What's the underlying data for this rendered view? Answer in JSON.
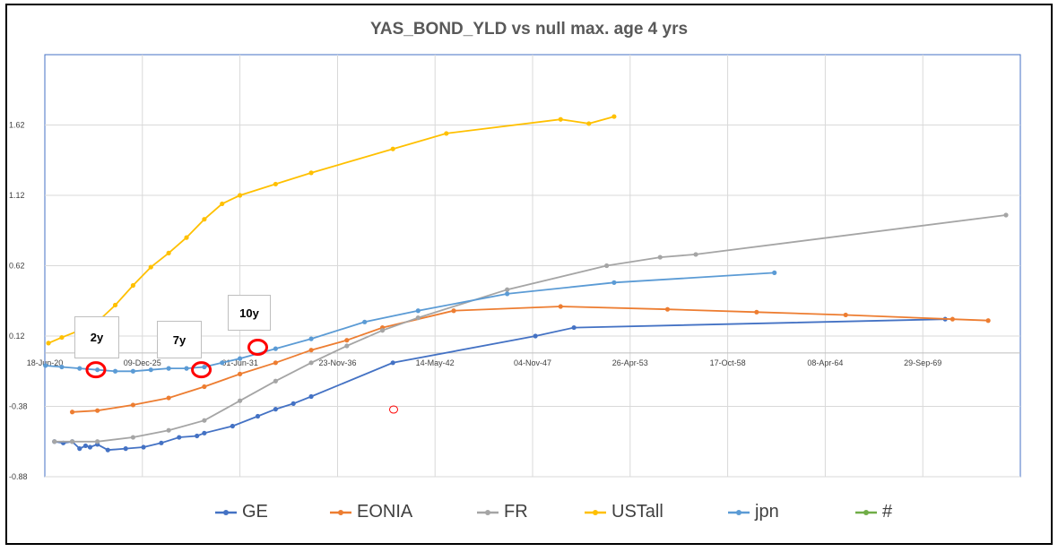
{
  "chart_data": {
    "type": "line",
    "title": "YAS_BOND_YLD vs null max. age 4 yrs",
    "xlabel": "",
    "ylabel": "",
    "x_ticks": [
      "18-Jun-20",
      "09-Dec-25",
      "01-Jun-31",
      "23-Nov-36",
      "14-May-42",
      "04-Nov-47",
      "26-Apr-53",
      "17-Oct-58",
      "08-Apr-64",
      "29-Sep-69"
    ],
    "y_ticks": [
      "1.62",
      "1.12",
      "0.62",
      "0.12",
      "-0.38",
      "-0.88"
    ],
    "xlim": [
      "2020-06-18",
      "2075-03-22"
    ],
    "ylim": [
      -0.88,
      2.12
    ],
    "x_axis_crosses_y": 0.0,
    "grid": true,
    "legend_position": "bottom",
    "series": [
      {
        "name": "GE",
        "color": "#4472C4",
        "points": [
          [
            "2021-01-01",
            -0.63
          ],
          [
            "2021-07-01",
            -0.64
          ],
          [
            "2022-01-01",
            -0.63
          ],
          [
            "2022-06-01",
            -0.68
          ],
          [
            "2022-10-01",
            -0.66
          ],
          [
            "2023-01-01",
            -0.67
          ],
          [
            "2023-06-01",
            -0.65
          ],
          [
            "2024-01-01",
            -0.69
          ],
          [
            "2025-01-01",
            -0.68
          ],
          [
            "2026-01-01",
            -0.67
          ],
          [
            "2027-01-01",
            -0.64
          ],
          [
            "2028-01-01",
            -0.6
          ],
          [
            "2029-01-01",
            -0.59
          ],
          [
            "2029-06-01",
            -0.57
          ],
          [
            "2031-01-01",
            -0.52
          ],
          [
            "2032-06-01",
            -0.45
          ],
          [
            "2033-06-01",
            -0.4
          ],
          [
            "2034-06-01",
            -0.36
          ],
          [
            "2035-06-01",
            -0.31
          ],
          [
            "2040-01-01",
            -0.07
          ],
          [
            "2048-01-01",
            0.12
          ],
          [
            "2050-03-01",
            0.18
          ],
          [
            "2071-01-01",
            0.24
          ]
        ]
      },
      {
        "name": "EONIA",
        "color": "#ED7D31",
        "points": [
          [
            "2022-01-01",
            -0.42
          ],
          [
            "2023-06-01",
            -0.41
          ],
          [
            "2025-06-01",
            -0.37
          ],
          [
            "2027-06-01",
            -0.32
          ],
          [
            "2029-06-01",
            -0.24
          ],
          [
            "2031-06-01",
            -0.15
          ],
          [
            "2033-06-01",
            -0.07
          ],
          [
            "2035-06-01",
            0.02
          ],
          [
            "2037-06-01",
            0.09
          ],
          [
            "2039-06-01",
            0.18
          ],
          [
            "2043-06-01",
            0.3
          ],
          [
            "2049-06-01",
            0.33
          ],
          [
            "2055-06-01",
            0.31
          ],
          [
            "2060-06-01",
            0.29
          ],
          [
            "2065-06-01",
            0.27
          ],
          [
            "2071-06-01",
            0.24
          ],
          [
            "2073-06-01",
            0.23
          ]
        ]
      },
      {
        "name": "FR",
        "color": "#A5A5A5",
        "points": [
          [
            "2021-01-01",
            -0.63
          ],
          [
            "2022-01-01",
            -0.63
          ],
          [
            "2023-06-01",
            -0.63
          ],
          [
            "2025-06-01",
            -0.6
          ],
          [
            "2027-06-01",
            -0.55
          ],
          [
            "2029-06-01",
            -0.48
          ],
          [
            "2031-06-01",
            -0.34
          ],
          [
            "2033-06-01",
            -0.2
          ],
          [
            "2035-06-01",
            -0.07
          ],
          [
            "2037-06-01",
            0.05
          ],
          [
            "2039-06-01",
            0.16
          ],
          [
            "2041-06-01",
            0.25
          ],
          [
            "2046-06-01",
            0.45
          ],
          [
            "2052-01-01",
            0.62
          ],
          [
            "2055-01-01",
            0.68
          ],
          [
            "2057-01-01",
            0.7
          ],
          [
            "2074-06-01",
            0.98
          ]
        ]
      },
      {
        "name": "USTall",
        "color": "#FFC000",
        "points": [
          [
            "2020-09-01",
            0.07
          ],
          [
            "2021-06-01",
            0.11
          ],
          [
            "2022-06-01",
            0.16
          ],
          [
            "2023-06-01",
            0.22
          ],
          [
            "2024-06-01",
            0.34
          ],
          [
            "2025-06-01",
            0.48
          ],
          [
            "2026-06-01",
            0.61
          ],
          [
            "2027-06-01",
            0.71
          ],
          [
            "2028-06-01",
            0.82
          ],
          [
            "2029-06-01",
            0.95
          ],
          [
            "2030-06-01",
            1.06
          ],
          [
            "2031-06-01",
            1.12
          ],
          [
            "2033-06-01",
            1.2
          ],
          [
            "2035-06-01",
            1.28
          ],
          [
            "2040-01-01",
            1.45
          ],
          [
            "2043-01-01",
            1.56
          ],
          [
            "2049-06-01",
            1.66
          ],
          [
            "2051-01-01",
            1.63
          ],
          [
            "2052-06-01",
            1.68
          ]
        ]
      },
      {
        "name": "jpn",
        "color": "#5B9BD5",
        "points": [
          [
            "2020-07-01",
            -0.09
          ],
          [
            "2021-06-01",
            -0.1
          ],
          [
            "2022-06-01",
            -0.11
          ],
          [
            "2023-06-01",
            -0.12
          ],
          [
            "2024-06-01",
            -0.13
          ],
          [
            "2025-06-01",
            -0.13
          ],
          [
            "2026-06-01",
            -0.12
          ],
          [
            "2027-06-01",
            -0.11
          ],
          [
            "2028-06-01",
            -0.11
          ],
          [
            "2029-06-01",
            -0.1
          ],
          [
            "2030-06-01",
            -0.07
          ],
          [
            "2031-06-01",
            -0.04
          ],
          [
            "2033-06-01",
            0.03
          ],
          [
            "2035-06-01",
            0.1
          ],
          [
            "2038-06-01",
            0.22
          ],
          [
            "2041-06-01",
            0.3
          ],
          [
            "2046-06-01",
            0.42
          ],
          [
            "2052-06-01",
            0.5
          ],
          [
            "2061-06-01",
            0.57
          ]
        ]
      },
      {
        "name": "#",
        "color": "#70AD47",
        "points": []
      }
    ]
  },
  "callouts": [
    {
      "label": "2y",
      "target": [
        "2023-05-01",
        -0.12
      ]
    },
    {
      "label": "7y",
      "target": [
        "2029-04-01",
        -0.12
      ]
    },
    {
      "label": "10y",
      "target": [
        "2032-06-01",
        0.04
      ]
    }
  ]
}
